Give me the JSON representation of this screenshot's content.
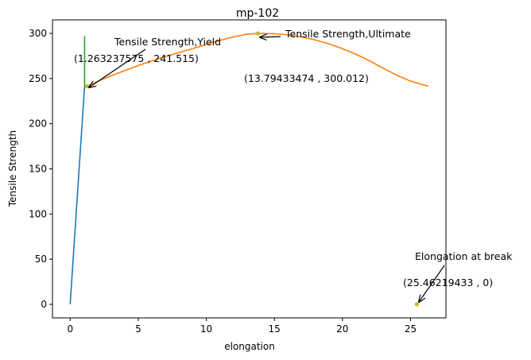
{
  "chart_data": {
    "type": "line",
    "title": "mp-102",
    "xlabel": "elongation",
    "ylabel": "Tensile Strength",
    "xlim": [
      -1.3,
      27.6
    ],
    "ylim": [
      -15,
      315
    ],
    "xticks": [
      0,
      5,
      10,
      15,
      20,
      25
    ],
    "yticks": [
      0,
      50,
      100,
      150,
      200,
      250,
      300
    ],
    "grid": false,
    "series": [
      {
        "color": "#1f77b4",
        "x": [
          0,
          1.06
        ],
        "y": [
          0,
          241.5
        ]
      },
      {
        "color": "#2ca02c",
        "x": [
          1.06,
          1.06,
          1.15,
          1.263237575
        ],
        "y": [
          297,
          242,
          241.5,
          241.515
        ]
      },
      {
        "color": "#ff7f0e",
        "x": [
          1.06,
          2,
          3,
          4,
          5,
          6,
          7,
          8,
          9,
          10,
          11,
          12,
          13,
          13.79433474,
          15,
          16,
          17,
          18,
          19,
          20,
          21,
          22,
          23,
          24,
          25,
          26.3
        ],
        "y": [
          240,
          246.7,
          253.1,
          258.8,
          264.4,
          269.6,
          274.4,
          278.8,
          283.2,
          287.8,
          292.2,
          296.2,
          299.1,
          300.012,
          299.7,
          298.3,
          296.0,
          292.8,
          288.5,
          283.1,
          276.8,
          269.5,
          261.4,
          253.6,
          247.2,
          241.5
        ]
      }
    ],
    "markers": [
      {
        "x": 1.263237575,
        "y": 241.515,
        "color": "#bcbd22"
      },
      {
        "x": 13.79433474,
        "y": 300.012,
        "color": "#bcbd22"
      },
      {
        "x": 25.46219433,
        "y": 0,
        "color": "#bcbd22"
      }
    ],
    "annotations": [
      {
        "label": "Tensile Strength,Yield",
        "coord_label": "(1.263237575 , 241.515)"
      },
      {
        "label": "Tensile Strength,Ultimate",
        "coord_label": "(13.79433474 , 300.012)"
      },
      {
        "label": "Elongation at break",
        "coord_label": "(25.46219433 , 0)"
      }
    ]
  }
}
